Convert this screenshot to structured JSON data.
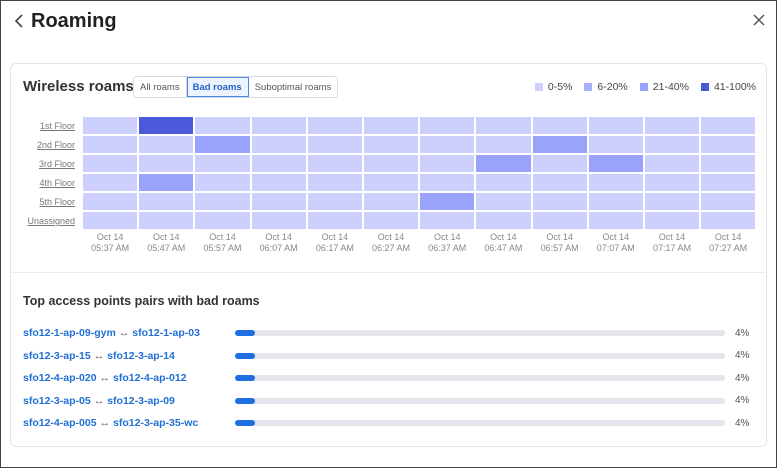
{
  "header": {
    "title": "Roaming",
    "back_icon": "chevron-left-icon",
    "close_icon": "close-icon"
  },
  "wireless": {
    "title": "Wireless roams",
    "segments": [
      {
        "label": "All roams",
        "active": false
      },
      {
        "label": "Bad roams",
        "active": true
      },
      {
        "label": "Suboptimal roams",
        "active": false
      }
    ],
    "legend": [
      {
        "label": "0-5%",
        "color": "#cdd0fd"
      },
      {
        "label": "6-20%",
        "color": "#a9b0fb"
      },
      {
        "label": "21-40%",
        "color": "#9aa3fb"
      },
      {
        "label": "41-100%",
        "color": "#4b59db"
      }
    ]
  },
  "chart_data": {
    "type": "heatmap",
    "title": "Wireless roams (Bad roams)",
    "rows": [
      "1st Floor",
      "2nd Floor",
      "3rd Floor",
      "4th Floor",
      "5th Floor",
      "Unassigned"
    ],
    "columns": [
      "Oct 14|05:37 AM",
      "Oct 14|05:47 AM",
      "Oct 14|05:57 AM",
      "Oct 14|06:07 AM",
      "Oct 14|06:17 AM",
      "Oct 14|06:27 AM",
      "Oct 14|06:37 AM",
      "Oct 14|06:47 AM",
      "Oct 14|06:57 AM",
      "Oct 14|07:07 AM",
      "Oct 14|07:17 AM",
      "Oct 14|07:27 AM"
    ],
    "bucket_legend": [
      "0-5%",
      "6-20%",
      "21-40%",
      "41-100%"
    ],
    "values_bucket_index": [
      [
        0,
        3,
        0,
        0,
        0,
        0,
        0,
        0,
        0,
        0,
        0,
        0
      ],
      [
        0,
        0,
        2,
        0,
        0,
        0,
        0,
        0,
        2,
        0,
        0,
        0
      ],
      [
        0,
        0,
        0,
        0,
        0,
        0,
        0,
        2,
        0,
        2,
        0,
        0
      ],
      [
        0,
        2,
        0,
        0,
        0,
        0,
        0,
        0,
        0,
        0,
        0,
        0
      ],
      [
        0,
        0,
        0,
        0,
        0,
        0,
        2,
        0,
        0,
        0,
        0,
        0
      ],
      [
        0,
        0,
        0,
        0,
        0,
        0,
        0,
        0,
        0,
        0,
        0,
        0
      ]
    ]
  },
  "pairs_section": {
    "title": "Top access points pairs with bad roams",
    "arrow": "↔",
    "bar_color": "#1e6fe0",
    "items": [
      {
        "a": "sfo12-1-ap-09-gym",
        "b": "sfo12-1-ap-03",
        "value": 4,
        "label": "4%"
      },
      {
        "a": "sfo12-3-ap-15",
        "b": "sfo12-3-ap-14",
        "value": 4,
        "label": "4%"
      },
      {
        "a": "sfo12-4-ap-020",
        "b": "sfo12-4-ap-012",
        "value": 4,
        "label": "4%"
      },
      {
        "a": "sfo12-3-ap-05",
        "b": "sfo12-3-ap-09",
        "value": 4,
        "label": "4%"
      },
      {
        "a": "sfo12-4-ap-005",
        "b": "sfo12-3-ap-35-wc",
        "value": 4,
        "label": "4%"
      }
    ]
  }
}
